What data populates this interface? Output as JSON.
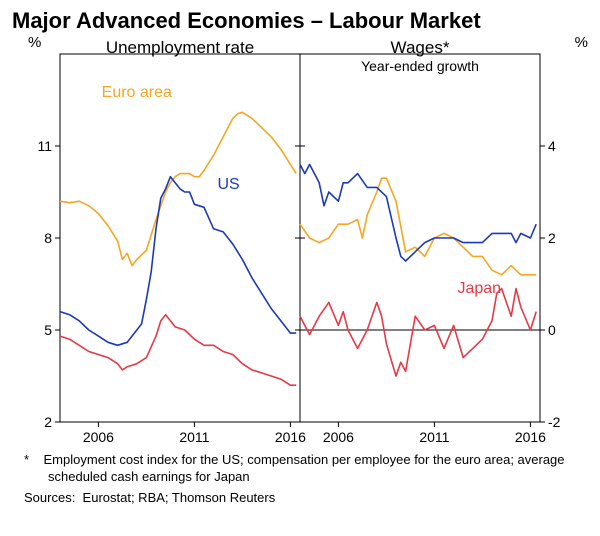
{
  "title": "Major Advanced Economies – Labour Market",
  "panels": {
    "left": {
      "title": "Unemployment rate",
      "ylabel": "%",
      "ylim": [
        2,
        14
      ],
      "yticks": [
        2,
        5,
        8,
        11
      ],
      "xlim": [
        2004,
        2016.5
      ],
      "xticks": [
        2006,
        2011,
        2016
      ]
    },
    "right": {
      "title": "Wages*",
      "subtitle": "Year-ended growth",
      "ylabel": "%",
      "ylim": [
        -2,
        6
      ],
      "yticks": [
        -2,
        0,
        2,
        4
      ],
      "xlim": [
        2004,
        2016.5
      ],
      "xticks": [
        2006,
        2011,
        2016
      ]
    }
  },
  "colors": {
    "euro": "#f5a623",
    "us": "#1c39bb",
    "japan": "#e63946",
    "axis": "#000000",
    "background": "#ffffff"
  },
  "line_width": 1.6,
  "series_labels": {
    "euro": "Euro area",
    "us": "US",
    "japan": "Japan"
  },
  "series": {
    "left": {
      "euro": [
        [
          2004,
          9.2
        ],
        [
          2004.5,
          9.15
        ],
        [
          2005,
          9.2
        ],
        [
          2005.5,
          9.05
        ],
        [
          2006,
          8.8
        ],
        [
          2006.5,
          8.4
        ],
        [
          2007,
          7.9
        ],
        [
          2007.25,
          7.3
        ],
        [
          2007.5,
          7.5
        ],
        [
          2007.75,
          7.1
        ],
        [
          2008,
          7.3
        ],
        [
          2008.5,
          7.6
        ],
        [
          2009,
          8.6
        ],
        [
          2009.5,
          9.5
        ],
        [
          2009.75,
          9.8
        ],
        [
          2010,
          10.0
        ],
        [
          2010.25,
          10.1
        ],
        [
          2010.5,
          10.1
        ],
        [
          2010.75,
          10.1
        ],
        [
          2011,
          10.0
        ],
        [
          2011.25,
          10.0
        ],
        [
          2011.5,
          10.2
        ],
        [
          2012,
          10.7
        ],
        [
          2012.5,
          11.3
        ],
        [
          2013,
          11.9
        ],
        [
          2013.25,
          12.05
        ],
        [
          2013.5,
          12.1
        ],
        [
          2014,
          11.9
        ],
        [
          2014.5,
          11.6
        ],
        [
          2015,
          11.3
        ],
        [
          2015.5,
          10.9
        ],
        [
          2016,
          10.4
        ],
        [
          2016.3,
          10.1
        ]
      ],
      "us": [
        [
          2004,
          5.6
        ],
        [
          2004.5,
          5.5
        ],
        [
          2005,
          5.3
        ],
        [
          2005.5,
          5.0
        ],
        [
          2006,
          4.8
        ],
        [
          2006.5,
          4.6
        ],
        [
          2007,
          4.5
        ],
        [
          2007.5,
          4.6
        ],
        [
          2008,
          5.0
        ],
        [
          2008.25,
          5.2
        ],
        [
          2008.5,
          6.0
        ],
        [
          2008.75,
          6.9
        ],
        [
          2009,
          8.3
        ],
        [
          2009.25,
          9.3
        ],
        [
          2009.5,
          9.6
        ],
        [
          2009.75,
          10.0
        ],
        [
          2010,
          9.8
        ],
        [
          2010.25,
          9.6
        ],
        [
          2010.5,
          9.5
        ],
        [
          2010.75,
          9.5
        ],
        [
          2011,
          9.1
        ],
        [
          2011.5,
          9.0
        ],
        [
          2012,
          8.3
        ],
        [
          2012.5,
          8.2
        ],
        [
          2013,
          7.8
        ],
        [
          2013.5,
          7.3
        ],
        [
          2014,
          6.7
        ],
        [
          2014.5,
          6.2
        ],
        [
          2015,
          5.7
        ],
        [
          2015.5,
          5.3
        ],
        [
          2016,
          4.9
        ],
        [
          2016.3,
          4.9
        ]
      ],
      "japan": [
        [
          2004,
          4.8
        ],
        [
          2004.5,
          4.7
        ],
        [
          2005,
          4.5
        ],
        [
          2005.5,
          4.3
        ],
        [
          2006,
          4.2
        ],
        [
          2006.5,
          4.1
        ],
        [
          2007,
          3.9
        ],
        [
          2007.25,
          3.7
        ],
        [
          2007.5,
          3.8
        ],
        [
          2008,
          3.9
        ],
        [
          2008.5,
          4.1
        ],
        [
          2009,
          4.8
        ],
        [
          2009.25,
          5.3
        ],
        [
          2009.5,
          5.5
        ],
        [
          2009.75,
          5.3
        ],
        [
          2010,
          5.1
        ],
        [
          2010.5,
          5.0
        ],
        [
          2011,
          4.7
        ],
        [
          2011.5,
          4.5
        ],
        [
          2012,
          4.5
        ],
        [
          2012.5,
          4.3
        ],
        [
          2013,
          4.2
        ],
        [
          2013.5,
          3.9
        ],
        [
          2014,
          3.7
        ],
        [
          2014.5,
          3.6
        ],
        [
          2015,
          3.5
        ],
        [
          2015.5,
          3.4
        ],
        [
          2016,
          3.2
        ],
        [
          2016.3,
          3.2
        ]
      ]
    },
    "right": {
      "euro": [
        [
          2004,
          2.3
        ],
        [
          2004.5,
          2.0
        ],
        [
          2005,
          1.9
        ],
        [
          2005.5,
          2.0
        ],
        [
          2006,
          2.3
        ],
        [
          2006.5,
          2.3
        ],
        [
          2007,
          2.4
        ],
        [
          2007.25,
          2.0
        ],
        [
          2007.5,
          2.5
        ],
        [
          2008,
          3.0
        ],
        [
          2008.25,
          3.3
        ],
        [
          2008.5,
          3.3
        ],
        [
          2009,
          2.8
        ],
        [
          2009.5,
          1.7
        ],
        [
          2010,
          1.8
        ],
        [
          2010.5,
          1.6
        ],
        [
          2011,
          2.0
        ],
        [
          2011.5,
          2.1
        ],
        [
          2012,
          2.0
        ],
        [
          2012.5,
          1.8
        ],
        [
          2013,
          1.6
        ],
        [
          2013.5,
          1.6
        ],
        [
          2014,
          1.3
        ],
        [
          2014.5,
          1.2
        ],
        [
          2015,
          1.4
        ],
        [
          2015.5,
          1.2
        ],
        [
          2016,
          1.2
        ],
        [
          2016.3,
          1.2
        ]
      ],
      "us": [
        [
          2004,
          3.6
        ],
        [
          2004.25,
          3.4
        ],
        [
          2004.5,
          3.6
        ],
        [
          2005,
          3.2
        ],
        [
          2005.25,
          2.7
        ],
        [
          2005.5,
          3.0
        ],
        [
          2006,
          2.8
        ],
        [
          2006.25,
          3.2
        ],
        [
          2006.5,
          3.2
        ],
        [
          2007,
          3.4
        ],
        [
          2007.5,
          3.1
        ],
        [
          2008,
          3.1
        ],
        [
          2008.5,
          2.9
        ],
        [
          2009,
          2.0
        ],
        [
          2009.25,
          1.6
        ],
        [
          2009.5,
          1.5
        ],
        [
          2010,
          1.7
        ],
        [
          2010.5,
          1.9
        ],
        [
          2011,
          2.0
        ],
        [
          2011.5,
          2.0
        ],
        [
          2012,
          2.0
        ],
        [
          2012.5,
          1.9
        ],
        [
          2013,
          1.9
        ],
        [
          2013.5,
          1.9
        ],
        [
          2014,
          2.1
        ],
        [
          2014.5,
          2.1
        ],
        [
          2015,
          2.1
        ],
        [
          2015.25,
          1.9
        ],
        [
          2015.5,
          2.1
        ],
        [
          2016,
          2.0
        ],
        [
          2016.3,
          2.3
        ]
      ],
      "japan": [
        [
          2004,
          0.3
        ],
        [
          2004.5,
          -0.1
        ],
        [
          2005,
          0.3
        ],
        [
          2005.5,
          0.6
        ],
        [
          2006,
          0.1
        ],
        [
          2006.25,
          0.4
        ],
        [
          2006.5,
          0.0
        ],
        [
          2007,
          -0.4
        ],
        [
          2007.5,
          0.0
        ],
        [
          2008,
          0.6
        ],
        [
          2008.25,
          0.3
        ],
        [
          2008.5,
          -0.3
        ],
        [
          2009,
          -1.0
        ],
        [
          2009.25,
          -0.7
        ],
        [
          2009.5,
          -0.9
        ],
        [
          2010,
          0.3
        ],
        [
          2010.5,
          0.0
        ],
        [
          2011,
          0.1
        ],
        [
          2011.5,
          -0.4
        ],
        [
          2012,
          0.1
        ],
        [
          2012.5,
          -0.6
        ],
        [
          2013,
          -0.4
        ],
        [
          2013.5,
          -0.2
        ],
        [
          2014,
          0.2
        ],
        [
          2014.25,
          0.8
        ],
        [
          2014.5,
          0.9
        ],
        [
          2015,
          0.3
        ],
        [
          2015.25,
          0.9
        ],
        [
          2015.5,
          0.5
        ],
        [
          2016,
          0.0
        ],
        [
          2016.3,
          0.4
        ]
      ]
    }
  },
  "footnote_marker": "*",
  "footnote_text": "Employment cost index for the US; compensation per employee for the euro area; average scheduled cash earnings for Japan",
  "sources_label": "Sources:",
  "sources_text": "Eurostat; RBA; Thomson Reuters"
}
